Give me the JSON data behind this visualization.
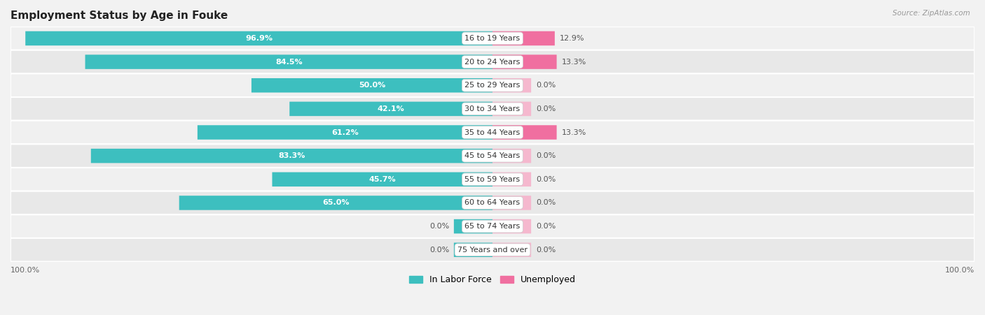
{
  "title": "Employment Status by Age in Fouke",
  "source": "Source: ZipAtlas.com",
  "categories": [
    "16 to 19 Years",
    "20 to 24 Years",
    "25 to 29 Years",
    "30 to 34 Years",
    "35 to 44 Years",
    "45 to 54 Years",
    "55 to 59 Years",
    "60 to 64 Years",
    "65 to 74 Years",
    "75 Years and over"
  ],
  "labor_force": [
    96.9,
    84.5,
    50.0,
    42.1,
    61.2,
    83.3,
    45.7,
    65.0,
    0.0,
    0.0
  ],
  "unemployed": [
    12.9,
    13.3,
    0.0,
    0.0,
    13.3,
    0.0,
    0.0,
    0.0,
    0.0,
    0.0
  ],
  "labor_force_color": "#3dbfbf",
  "unemployed_color_strong": "#f06fa0",
  "unemployed_color_weak": "#f5b8ce",
  "row_bg_colors": [
    "#f0f0f0",
    "#e8e8e8"
  ],
  "label_white": "#ffffff",
  "label_dark": "#555555",
  "center_label_color": "#333333",
  "axis_label_left": "100.0%",
  "axis_label_right": "100.0%",
  "max_value": 100.0,
  "stub_value": 8.0,
  "legend_labor_force": "In Labor Force",
  "legend_unemployed": "Unemployed",
  "inside_threshold": 20.0
}
